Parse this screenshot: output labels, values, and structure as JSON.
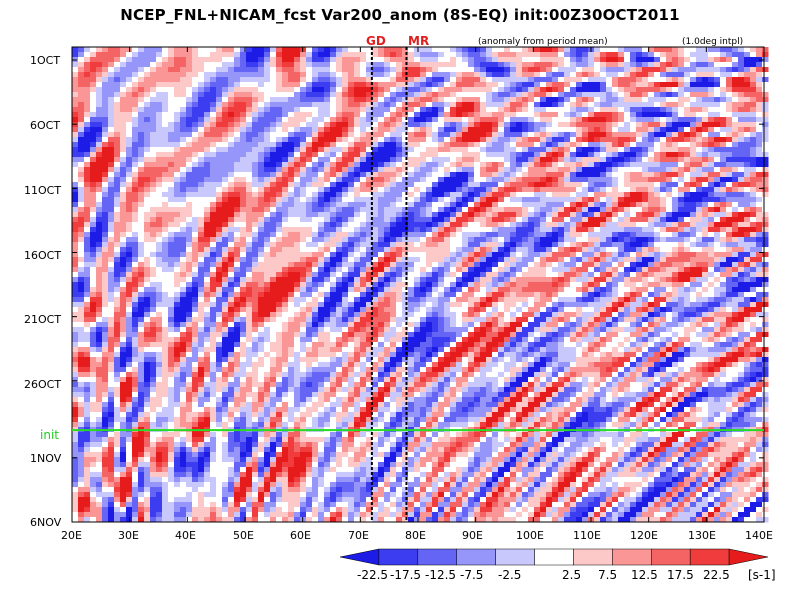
{
  "title": "NCEP_FNL+NICAM_fcst Var200_anom (8S-EQ) init:00Z30OCT2011",
  "note_anomaly": "(anomaly from period mean)",
  "note_interp": "(1.0deg intpl)",
  "markers": [
    {
      "label": "GD",
      "lon": 72
    },
    {
      "label": "MR",
      "lon": 78
    }
  ],
  "init_label": "init",
  "unit_label": "[s-1]",
  "colors": {
    "init_line": "#22dd22",
    "marker_text": "#e02020"
  },
  "chart_data": {
    "type": "heatmap",
    "title": "NCEP_FNL+NICAM_fcst Var200_anom (8S-EQ) init:00Z30OCT2011",
    "x_ticks": [
      "20E",
      "30E",
      "40E",
      "50E",
      "60E",
      "70E",
      "80E",
      "90E",
      "100E",
      "110E",
      "120E",
      "130E",
      "140E"
    ],
    "x_range": [
      20,
      140
    ],
    "y_ticks": [
      "1OCT",
      "6OCT",
      "11OCT",
      "16OCT",
      "21OCT",
      "26OCT",
      "1NOV",
      "6NOV"
    ],
    "y_range_days": [
      "1OCT",
      "6NOV"
    ],
    "init_date": "30OCT2011",
    "colorbar_levels": [
      "-22.5",
      "-17.5",
      "-12.5",
      "-7.5",
      "-2.5",
      "2.5",
      "7.5",
      "12.5",
      "17.5",
      "22.5"
    ],
    "colorbar_colors": [
      "#1c1ce6",
      "#3c3cf0",
      "#6464f5",
      "#9696fa",
      "#c8c8fc",
      "#ffffff",
      "#fcc8c8",
      "#fa9696",
      "#f56464",
      "#f03c3c",
      "#e61c1c"
    ],
    "unit": "[s-1]"
  }
}
